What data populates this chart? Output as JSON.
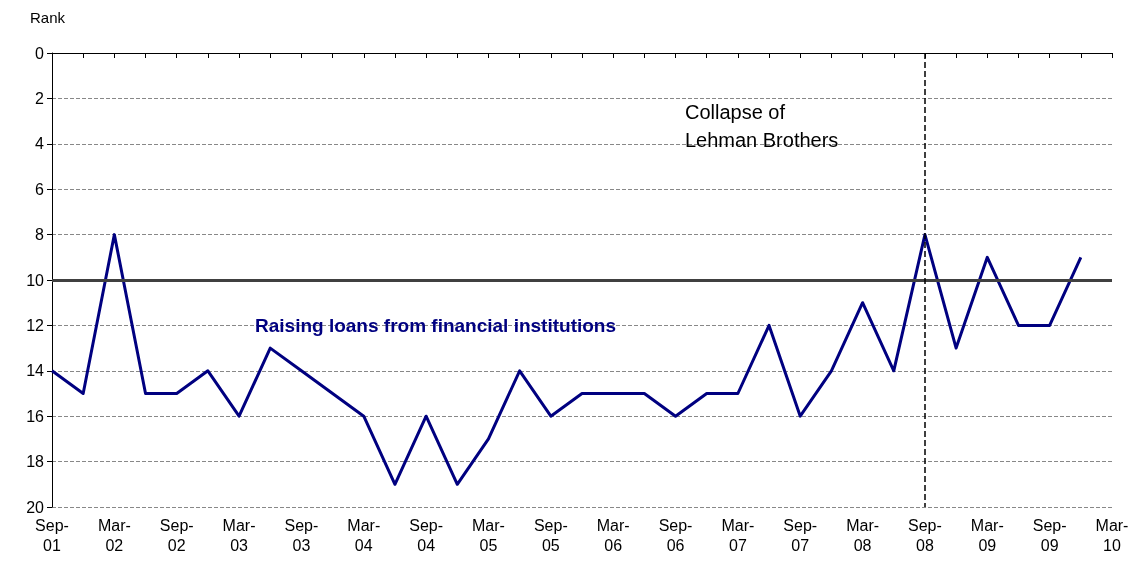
{
  "chart_data": {
    "type": "line",
    "ylabel": "Rank",
    "categories": [
      "Sep-01",
      null,
      "Mar-02",
      null,
      "Sep-02",
      null,
      "Mar-03",
      null,
      "Sep-03",
      null,
      "Mar-04",
      null,
      "Sep-04",
      null,
      "Mar-05",
      null,
      "Sep-05",
      null,
      "Mar-06",
      null,
      "Sep-06",
      null,
      "Mar-07",
      null,
      "Sep-07",
      null,
      "Mar-08",
      null,
      "Sep-08",
      null,
      "Mar-09",
      null,
      "Sep-09",
      null,
      "Mar-10"
    ],
    "series": [
      {
        "name": "Raising loans from financial institutions",
        "color": "#000080",
        "values": [
          14,
          15,
          8,
          15,
          15,
          14,
          16,
          13,
          14,
          15,
          16,
          19,
          16,
          19,
          17,
          14,
          16,
          15,
          15,
          15,
          16,
          15,
          15,
          12,
          16,
          14,
          11,
          14,
          8,
          13,
          9,
          12,
          12,
          9,
          null
        ]
      }
    ],
    "ylim": [
      20,
      0
    ],
    "yticks": [
      0,
      2,
      4,
      6,
      8,
      10,
      12,
      14,
      16,
      18,
      20
    ],
    "grid": "y",
    "marker": "none",
    "line_style": "solid",
    "legend": false,
    "ref_lines": [
      {
        "axis": "y",
        "value": 10,
        "color": "#404040",
        "line_style": "solid"
      },
      {
        "axis": "x",
        "value": "Sep-08",
        "label": "Collapse of\nLehman Brothers",
        "color": "#000000",
        "line_style": "dashed"
      }
    ]
  }
}
